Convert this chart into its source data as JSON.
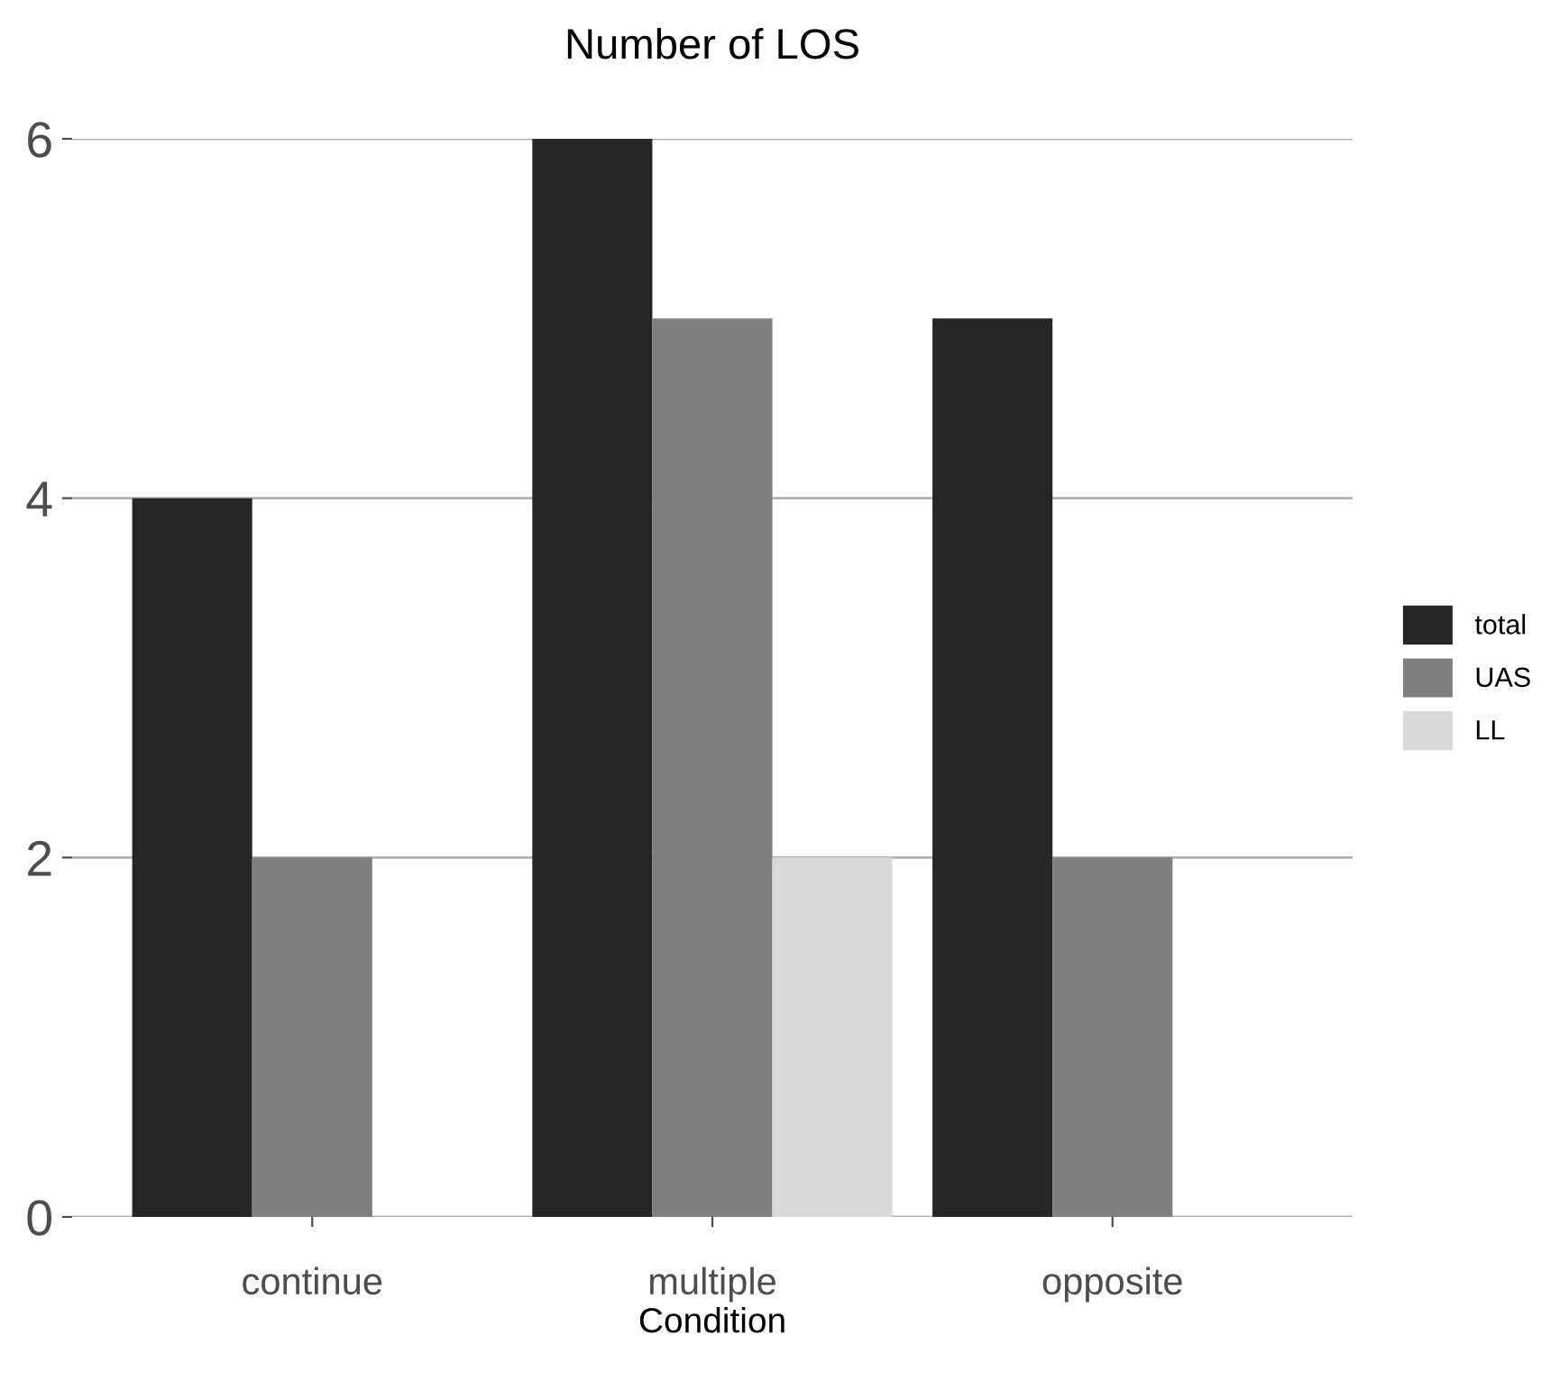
{
  "chart_data": {
    "type": "bar",
    "title": "Number of LOS",
    "xlabel": "Condition",
    "categories": [
      "continue",
      "multiple",
      "opposite"
    ],
    "series": [
      {
        "name": "total",
        "color": "#262626",
        "values": [
          4,
          6,
          5
        ]
      },
      {
        "name": "UAS",
        "color": "#7f7f7f",
        "values": [
          2,
          5,
          2
        ]
      },
      {
        "name": "LL",
        "color": "#d9d9d9",
        "values": [
          null,
          2,
          null
        ]
      }
    ],
    "ylim": [
      0,
      6
    ],
    "yticks": [
      0,
      2,
      4,
      6
    ],
    "grid": "y",
    "legend": "right"
  }
}
